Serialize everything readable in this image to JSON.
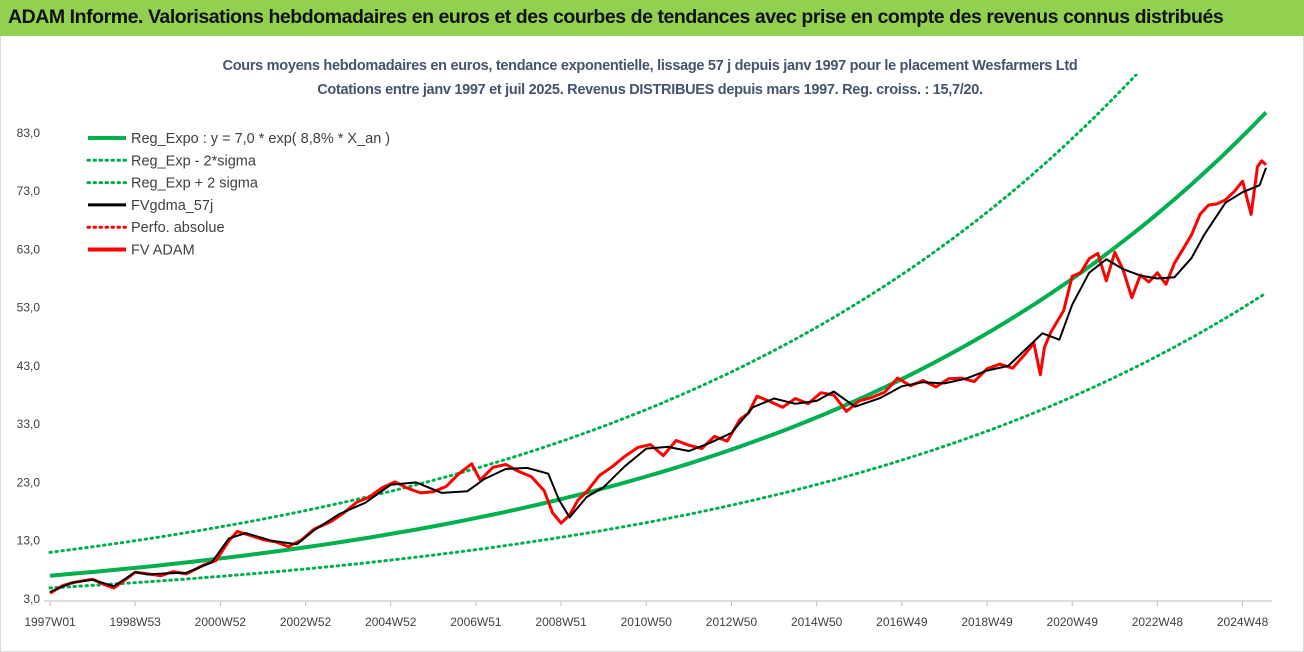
{
  "title": "ADAM Informe. Valorisations hebdomadaires en euros et des courbes de tendances avec prise en compte des revenus connus distribués",
  "chart_data": {
    "type": "line",
    "subtitle_line1": "Cours moyens hebdomadaires en euros, tendance exponentielle, lissage 57 j depuis janv 1997 pour le placement Wesfarmers Ltd",
    "subtitle_line2": "Cotations entre janv 1997 et juil 2025. Revenus DISTRIBUES depuis mars 1997. Reg. croiss. : 15,7/20.",
    "ylim": [
      3.0,
      90.0
    ],
    "y_ticks": [
      "3,0",
      "13,0",
      "23,0",
      "33,0",
      "43,0",
      "53,0",
      "63,0",
      "73,0",
      "83,0"
    ],
    "x_range": [
      1997.0,
      2025.55
    ],
    "x_ticks": [
      {
        "label": "1997W01",
        "x": 1997.0
      },
      {
        "label": "1998W53",
        "x": 1999.0
      },
      {
        "label": "2000W52",
        "x": 2001.0
      },
      {
        "label": "2002W52",
        "x": 2003.0
      },
      {
        "label": "2004W52",
        "x": 2005.0
      },
      {
        "label": "2006W51",
        "x": 2007.0
      },
      {
        "label": "2008W51",
        "x": 2009.0
      },
      {
        "label": "2010W50",
        "x": 2011.0
      },
      {
        "label": "2012W50",
        "x": 2013.0
      },
      {
        "label": "2014W50",
        "x": 2015.0
      },
      {
        "label": "2016W49",
        "x": 2017.0
      },
      {
        "label": "2018W49",
        "x": 2019.0
      },
      {
        "label": "2020W49",
        "x": 2021.0
      },
      {
        "label": "2022W48",
        "x": 2023.0
      },
      {
        "label": "2024W48",
        "x": 2025.0
      }
    ],
    "grid": false,
    "legend_position": "top-left",
    "series": [
      {
        "name": "Reg_Expo : y = 7,0 * exp( 8,8% *  X_an )",
        "color": "#00b050",
        "style": "solid",
        "x": [
          1997.0,
          2025.55
        ],
        "y": [
          7.0,
          86.5
        ]
      },
      {
        "name": "Reg_Exp - 2*sigma",
        "color": "#00b050",
        "style": "dotted",
        "x": [
          1997.0,
          2025.55
        ],
        "y": [
          4.9,
          55.5
        ]
      },
      {
        "name": "Reg_Exp + 2 sigma",
        "color": "#00b050",
        "style": "dotted",
        "x": [
          1997.0,
          2025.55
        ],
        "y": [
          11.0,
          120.0
        ]
      },
      {
        "name": "FVgdma_57j",
        "color": "#000000",
        "style": "solid",
        "x": [
          1997.0,
          1997.5,
          1998.0,
          1998.5,
          1999.0,
          1999.3,
          1999.7,
          2000.2,
          2000.8,
          2001.2,
          2001.6,
          2002.2,
          2002.8,
          2003.2,
          2003.8,
          2004.4,
          2005.0,
          2005.6,
          2006.2,
          2006.8,
          2007.2,
          2007.7,
          2008.2,
          2008.7,
          2008.95,
          2009.2,
          2009.6,
          2010.0,
          2010.5,
          2011.0,
          2011.5,
          2012.0,
          2012.5,
          2013.0,
          2013.5,
          2014.0,
          2014.5,
          2015.0,
          2015.4,
          2015.9,
          2016.5,
          2017.0,
          2017.5,
          2018.0,
          2018.5,
          2019.0,
          2019.5,
          2020.0,
          2020.3,
          2020.7,
          2021.0,
          2021.4,
          2021.8,
          2022.2,
          2022.6,
          2023.0,
          2023.4,
          2023.8,
          2024.1,
          2024.6,
          2025.0,
          2025.4,
          2025.55
        ],
        "y": [
          4.2,
          5.8,
          6.3,
          5.2,
          7.6,
          7.2,
          7.4,
          7.5,
          9.3,
          13.4,
          14.3,
          13.0,
          12.4,
          14.8,
          17.6,
          19.5,
          22.6,
          23.0,
          21.2,
          21.5,
          23.6,
          25.3,
          25.5,
          24.5,
          20.0,
          17.0,
          20.5,
          22.2,
          25.8,
          28.8,
          29.1,
          28.4,
          29.8,
          31.5,
          35.9,
          37.4,
          36.5,
          37.0,
          38.6,
          36.0,
          37.5,
          39.5,
          40.2,
          40.0,
          40.8,
          42.2,
          43.0,
          46.5,
          48.6,
          47.5,
          53.5,
          59.0,
          61.3,
          59.6,
          58.5,
          58.0,
          58.2,
          61.5,
          65.5,
          71.0,
          72.8,
          74.0,
          77.0
        ]
      },
      {
        "name": "Perfo. absolue",
        "color": "#ff0000",
        "style": "dotted",
        "x": [],
        "y": []
      },
      {
        "name": "FV ADAM",
        "color": "#ff0000",
        "style": "solid",
        "x": [
          1997.0,
          1997.3,
          1997.6,
          1998.0,
          1998.3,
          1998.5,
          1998.8,
          1999.0,
          1999.3,
          1999.6,
          1999.9,
          2000.2,
          2000.6,
          2000.9,
          2001.2,
          2001.4,
          2001.7,
          2002.0,
          2002.3,
          2002.6,
          2002.9,
          2003.2,
          2003.6,
          2003.9,
          2004.2,
          2004.5,
          2004.8,
          2005.1,
          2005.4,
          2005.7,
          2006.0,
          2006.3,
          2006.6,
          2006.9,
          2007.1,
          2007.4,
          2007.7,
          2008.0,
          2008.3,
          2008.6,
          2008.8,
          2009.0,
          2009.2,
          2009.4,
          2009.6,
          2009.9,
          2010.2,
          2010.5,
          2010.8,
          2011.1,
          2011.4,
          2011.7,
          2012.0,
          2012.3,
          2012.6,
          2012.9,
          2013.2,
          2013.4,
          2013.6,
          2013.9,
          2014.2,
          2014.5,
          2014.8,
          2015.1,
          2015.4,
          2015.7,
          2016.0,
          2016.3,
          2016.6,
          2016.9,
          2017.2,
          2017.5,
          2017.8,
          2018.1,
          2018.4,
          2018.7,
          2019.0,
          2019.3,
          2019.6,
          2019.9,
          2020.1,
          2020.25,
          2020.35,
          2020.5,
          2020.8,
          2021.0,
          2021.2,
          2021.4,
          2021.6,
          2021.8,
          2022.0,
          2022.2,
          2022.4,
          2022.6,
          2022.8,
          2023.0,
          2023.2,
          2023.4,
          2023.6,
          2023.8,
          2024.0,
          2024.2,
          2024.4,
          2024.6,
          2024.8,
          2025.0,
          2025.2,
          2025.35,
          2025.45,
          2025.55
        ],
        "y": [
          4.0,
          5.3,
          5.9,
          6.4,
          5.4,
          4.9,
          6.5,
          7.6,
          7.3,
          7.0,
          7.7,
          7.3,
          8.8,
          9.6,
          13.0,
          14.6,
          13.9,
          13.2,
          12.8,
          12.0,
          13.1,
          15.0,
          16.3,
          17.8,
          19.6,
          20.5,
          22.1,
          23.1,
          22.0,
          21.2,
          21.4,
          22.3,
          24.5,
          26.2,
          23.4,
          25.6,
          26.1,
          24.9,
          24.0,
          21.6,
          17.8,
          16.0,
          17.4,
          20.0,
          21.4,
          24.2,
          25.7,
          27.5,
          29.0,
          29.5,
          27.6,
          30.2,
          29.4,
          28.8,
          30.9,
          30.1,
          33.8,
          34.9,
          37.8,
          36.9,
          35.9,
          37.4,
          36.5,
          38.4,
          38.0,
          35.2,
          37.0,
          37.6,
          38.5,
          40.9,
          39.6,
          40.5,
          39.4,
          40.8,
          40.9,
          40.3,
          42.5,
          43.3,
          42.6,
          45.1,
          46.9,
          41.5,
          46.2,
          48.8,
          52.5,
          58.4,
          59.0,
          61.4,
          62.3,
          57.6,
          62.5,
          59.4,
          54.7,
          58.6,
          57.4,
          59.0,
          57.0,
          60.6,
          63.0,
          65.5,
          69.0,
          70.6,
          70.8,
          71.5,
          72.9,
          74.7,
          69.0,
          77.2,
          78.2,
          77.5
        ]
      }
    ]
  }
}
